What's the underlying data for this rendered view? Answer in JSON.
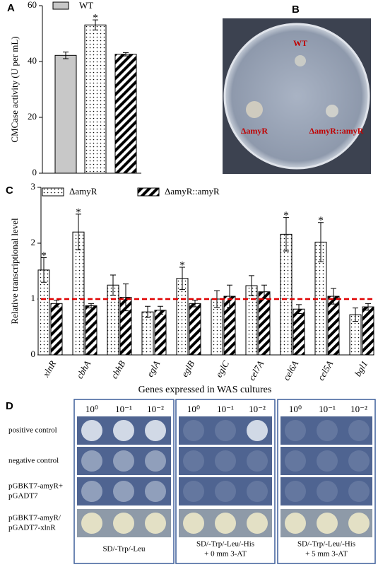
{
  "panel_labels": [
    "A",
    "B",
    "C",
    "D"
  ],
  "chart_data": [
    {
      "type": "bar",
      "categories": [
        null,
        null,
        null
      ],
      "values": [
        42.2,
        53.1,
        42.6
      ],
      "errors": [
        1.2,
        1.8,
        0.6
      ],
      "patterns": [
        "solid",
        "dotted",
        "hatched"
      ],
      "color": "#c8c8c8",
      "legend": "WT",
      "annotations": [
        null,
        "*",
        null
      ],
      "ylabel": "CMCase activity (U per mL)",
      "ylim": [
        0,
        60
      ],
      "yticks": [
        0,
        20,
        40,
        60
      ]
    },
    {
      "type": "grouped-bar",
      "categories": [
        "xlnR",
        "cbhA",
        "cbhB",
        "eglA",
        "eglB",
        "eglC",
        "cel7A",
        "cel6A",
        "cel5A",
        "bgl1"
      ],
      "series": [
        {
          "name": "ΔamyR",
          "pattern": "dotted",
          "values": [
            1.52,
            2.2,
            1.25,
            0.77,
            1.37,
            1.0,
            1.24,
            2.16,
            2.02,
            0.72
          ],
          "errors": [
            0.22,
            0.32,
            0.18,
            0.1,
            0.2,
            0.15,
            0.18,
            0.3,
            0.35,
            0.12
          ],
          "annotations": [
            "*",
            "*",
            null,
            null,
            "*",
            null,
            null,
            "*",
            "*",
            null
          ]
        },
        {
          "name": "ΔamyR::amyR",
          "pattern": "hatched",
          "values": [
            0.92,
            0.88,
            1.03,
            0.8,
            0.92,
            1.05,
            1.13,
            0.82,
            1.05,
            0.86
          ],
          "errors": [
            0.06,
            0.04,
            0.24,
            0.07,
            0.06,
            0.2,
            0.12,
            0.08,
            0.14,
            0.06
          ],
          "annotations": [
            null,
            null,
            null,
            null,
            null,
            null,
            null,
            null,
            null,
            null
          ]
        }
      ],
      "reference_line": {
        "value": 1,
        "color": "#e00000"
      },
      "ylabel": "Relative transcriptional level",
      "xlabel": "Genes expressed in WAS cultures",
      "ylim": [
        0,
        3
      ],
      "yticks": [
        0,
        1,
        2,
        3
      ]
    }
  ],
  "plate": {
    "labels": [
      "WT",
      "ΔamyR",
      "ΔamyR::amyR"
    ]
  },
  "spot_assay": {
    "dilutions": [
      "10⁰",
      "10⁻¹",
      "10⁻²"
    ],
    "rows": [
      [
        "positive control"
      ],
      [
        "negative control"
      ],
      [
        "pGBKT7-amyR+",
        "pGADT7"
      ],
      [
        "pGBKT7-amyR/",
        "pGADT7-xlnR"
      ]
    ],
    "conditions": [
      [
        "SD/-Trp/-Leu"
      ],
      [
        "SD/-Trp/-Leu/-His",
        "+ 0 mm 3-AT"
      ],
      [
        "SD/-Trp/-Leu/-His",
        "+ 5 mm 3-AT"
      ]
    ]
  }
}
